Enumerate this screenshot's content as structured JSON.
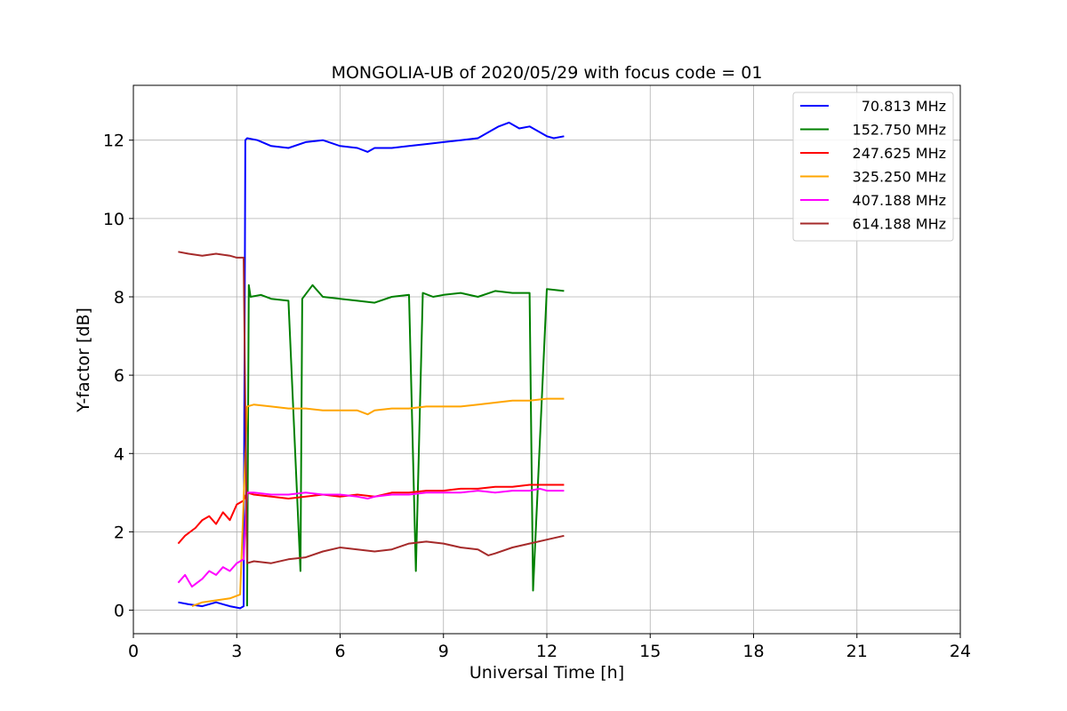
{
  "chart_data": {
    "type": "line",
    "title": "MONGOLIA-UB of 2020/05/29 with focus code = 01",
    "xlabel": "Universal Time [h]",
    "ylabel": "Y-factor [dB]",
    "xlim": [
      0,
      24
    ],
    "ylim": [
      -0.6,
      13.4
    ],
    "xticks": [
      0,
      3,
      6,
      9,
      12,
      15,
      18,
      21,
      24
    ],
    "yticks": [
      0,
      2,
      4,
      6,
      8,
      10,
      12
    ],
    "grid": true,
    "legend_position": "top-right",
    "series": [
      {
        "name": "70.813 MHz",
        "color": "#0000ff",
        "x": [
          1.3,
          1.6,
          2.0,
          2.4,
          2.8,
          3.1,
          3.2,
          3.25,
          3.3,
          3.6,
          4.0,
          4.5,
          5.0,
          5.5,
          6.0,
          6.5,
          6.8,
          7.0,
          7.5,
          8.0,
          8.5,
          9.0,
          9.5,
          10.0,
          10.3,
          10.6,
          10.9,
          11.2,
          11.5,
          11.8,
          12.0,
          12.2,
          12.5
        ],
        "values": [
          0.2,
          0.15,
          0.1,
          0.2,
          0.1,
          0.05,
          0.1,
          12.0,
          12.05,
          12.0,
          11.85,
          11.8,
          11.95,
          12.0,
          11.85,
          11.8,
          11.7,
          11.8,
          11.8,
          11.85,
          11.9,
          11.95,
          12.0,
          12.05,
          12.2,
          12.35,
          12.45,
          12.3,
          12.35,
          12.2,
          12.1,
          12.05,
          12.1
        ]
      },
      {
        "name": "152.750 MHz",
        "color": "#008000",
        "x": [
          3.3,
          3.35,
          3.4,
          3.7,
          4.0,
          4.5,
          4.85,
          4.9,
          5.2,
          5.5,
          6.0,
          6.5,
          7.0,
          7.5,
          8.0,
          8.2,
          8.4,
          8.7,
          9.0,
          9.5,
          10.0,
          10.5,
          11.0,
          11.5,
          11.6,
          12.0,
          12.5
        ],
        "values": [
          0.1,
          8.3,
          8.0,
          8.05,
          7.95,
          7.9,
          1.0,
          7.95,
          8.3,
          8.0,
          7.95,
          7.9,
          7.85,
          8.0,
          8.05,
          1.0,
          8.1,
          8.0,
          8.05,
          8.1,
          8.0,
          8.15,
          8.1,
          8.1,
          0.5,
          8.2,
          8.15
        ]
      },
      {
        "name": "247.625 MHz",
        "color": "#ff0000",
        "x": [
          1.3,
          1.5,
          1.8,
          2.0,
          2.2,
          2.4,
          2.6,
          2.8,
          3.0,
          3.2,
          3.3,
          3.5,
          4.0,
          4.5,
          5.0,
          5.5,
          6.0,
          6.5,
          7.0,
          7.5,
          8.0,
          8.5,
          9.0,
          9.5,
          10.0,
          10.5,
          11.0,
          11.5,
          12.0,
          12.5
        ],
        "values": [
          1.7,
          1.9,
          2.1,
          2.3,
          2.4,
          2.2,
          2.5,
          2.3,
          2.7,
          2.8,
          3.0,
          2.95,
          2.9,
          2.85,
          2.9,
          2.95,
          2.9,
          2.95,
          2.9,
          3.0,
          3.0,
          3.05,
          3.05,
          3.1,
          3.1,
          3.15,
          3.15,
          3.2,
          3.2,
          3.2
        ]
      },
      {
        "name": "325.250 MHz",
        "color": "#ffa500",
        "x": [
          1.7,
          2.0,
          2.4,
          2.8,
          3.1,
          3.3,
          3.5,
          4.0,
          4.5,
          5.0,
          5.5,
          6.0,
          6.5,
          6.8,
          7.0,
          7.5,
          8.0,
          8.5,
          9.0,
          9.5,
          10.0,
          10.5,
          11.0,
          11.5,
          12.0,
          12.5
        ],
        "values": [
          0.1,
          0.2,
          0.25,
          0.3,
          0.4,
          5.2,
          5.25,
          5.2,
          5.15,
          5.15,
          5.1,
          5.1,
          5.1,
          5.0,
          5.1,
          5.15,
          5.15,
          5.2,
          5.2,
          5.2,
          5.25,
          5.3,
          5.35,
          5.35,
          5.4,
          5.4
        ]
      },
      {
        "name": "407.188 MHz",
        "color": "#ff00ff",
        "x": [
          1.3,
          1.5,
          1.7,
          2.0,
          2.2,
          2.4,
          2.6,
          2.8,
          3.0,
          3.2,
          3.3,
          3.5,
          4.0,
          4.5,
          5.0,
          5.5,
          6.0,
          6.5,
          6.8,
          7.0,
          7.5,
          8.0,
          8.5,
          9.0,
          9.5,
          10.0,
          10.5,
          11.0,
          11.5,
          11.8,
          12.0,
          12.5
        ],
        "values": [
          0.7,
          0.9,
          0.6,
          0.8,
          1.0,
          0.9,
          1.1,
          1.0,
          1.2,
          1.3,
          3.0,
          3.0,
          2.95,
          2.95,
          3.0,
          2.95,
          2.95,
          2.9,
          2.85,
          2.9,
          2.95,
          2.95,
          3.0,
          3.0,
          3.0,
          3.05,
          3.0,
          3.05,
          3.05,
          3.1,
          3.05,
          3.05
        ]
      },
      {
        "name": "614.188 MHz",
        "color": "#a52a2a",
        "x": [
          1.3,
          1.6,
          2.0,
          2.4,
          2.8,
          3.0,
          3.2,
          3.3,
          3.5,
          4.0,
          4.5,
          5.0,
          5.5,
          6.0,
          6.5,
          7.0,
          7.5,
          8.0,
          8.5,
          9.0,
          9.5,
          10.0,
          10.3,
          10.5,
          11.0,
          11.5,
          12.0,
          12.5
        ],
        "values": [
          9.15,
          9.1,
          9.05,
          9.1,
          9.05,
          9.0,
          9.0,
          1.2,
          1.25,
          1.2,
          1.3,
          1.35,
          1.5,
          1.6,
          1.55,
          1.5,
          1.55,
          1.7,
          1.75,
          1.7,
          1.6,
          1.55,
          1.4,
          1.45,
          1.6,
          1.7,
          1.8,
          1.9
        ]
      }
    ]
  }
}
